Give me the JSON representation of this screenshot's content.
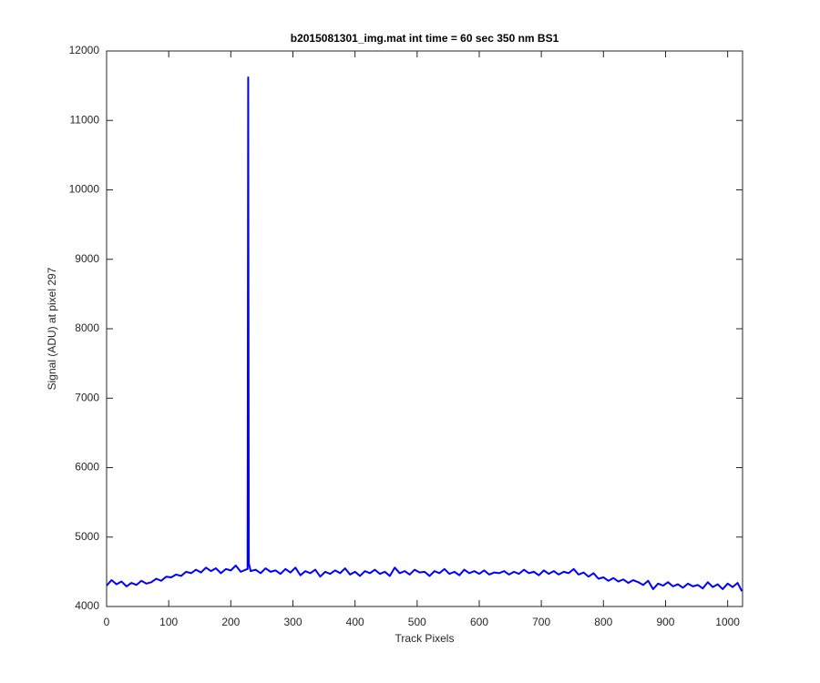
{
  "chart_data": {
    "type": "line",
    "title": "b2015081301_img.mat int time = 60 sec  350 nm BS1",
    "x_label": "Track Pixels",
    "y_label": "Signal (ADU) at pixel 297",
    "xlim": [
      0,
      1024
    ],
    "ylim": [
      4000,
      12000
    ],
    "xticks": [
      0,
      100,
      200,
      300,
      400,
      500,
      600,
      700,
      800,
      900,
      1000
    ],
    "yticks": [
      4000,
      5000,
      6000,
      7000,
      8000,
      9000,
      10000,
      11000,
      12000
    ],
    "x": [
      0,
      8,
      16,
      24,
      32,
      40,
      48,
      56,
      64,
      72,
      80,
      88,
      96,
      104,
      112,
      120,
      128,
      136,
      144,
      152,
      160,
      168,
      176,
      184,
      192,
      200,
      208,
      216,
      224,
      227,
      228,
      229,
      232,
      240,
      248,
      256,
      264,
      272,
      280,
      288,
      296,
      304,
      312,
      320,
      328,
      336,
      344,
      352,
      360,
      368,
      376,
      384,
      392,
      400,
      408,
      416,
      424,
      432,
      440,
      448,
      456,
      464,
      472,
      480,
      488,
      496,
      504,
      512,
      520,
      528,
      536,
      544,
      552,
      560,
      568,
      576,
      584,
      592,
      600,
      608,
      616,
      624,
      632,
      640,
      648,
      656,
      664,
      672,
      680,
      688,
      696,
      704,
      712,
      720,
      728,
      736,
      744,
      752,
      760,
      768,
      776,
      784,
      792,
      800,
      808,
      816,
      824,
      832,
      840,
      848,
      856,
      864,
      872,
      880,
      888,
      896,
      904,
      912,
      920,
      928,
      936,
      944,
      952,
      960,
      968,
      976,
      984,
      992,
      1000,
      1008,
      1016,
      1023
    ],
    "series": [
      {
        "color": "#0000ff",
        "values": [
          4300,
          4380,
          4320,
          4360,
          4290,
          4340,
          4310,
          4370,
          4330,
          4350,
          4400,
          4370,
          4430,
          4420,
          4460,
          4440,
          4500,
          4480,
          4530,
          4490,
          4560,
          4510,
          4550,
          4480,
          4540,
          4520,
          4590,
          4500,
          4530,
          4540,
          11620,
          4620,
          4510,
          4530,
          4480,
          4550,
          4500,
          4520,
          4470,
          4540,
          4490,
          4560,
          4450,
          4510,
          4480,
          4530,
          4430,
          4500,
          4470,
          4520,
          4480,
          4550,
          4460,
          4500,
          4440,
          4510,
          4480,
          4530,
          4470,
          4500,
          4440,
          4560,
          4480,
          4510,
          4460,
          4530,
          4490,
          4500,
          4440,
          4510,
          4480,
          4540,
          4470,
          4500,
          4450,
          4530,
          4480,
          4510,
          4470,
          4520,
          4460,
          4490,
          4480,
          4510,
          4460,
          4500,
          4470,
          4530,
          4480,
          4500,
          4450,
          4520,
          4470,
          4510,
          4460,
          4500,
          4480,
          4540,
          4460,
          4490,
          4430,
          4480,
          4400,
          4420,
          4370,
          4410,
          4360,
          4390,
          4340,
          4380,
          4350,
          4310,
          4370,
          4250,
          4330,
          4300,
          4350,
          4290,
          4320,
          4270,
          4330,
          4290,
          4310,
          4260,
          4350,
          4280,
          4320,
          4250,
          4330,
          4280,
          4340,
          4220
        ]
      }
    ],
    "grid": false
  }
}
